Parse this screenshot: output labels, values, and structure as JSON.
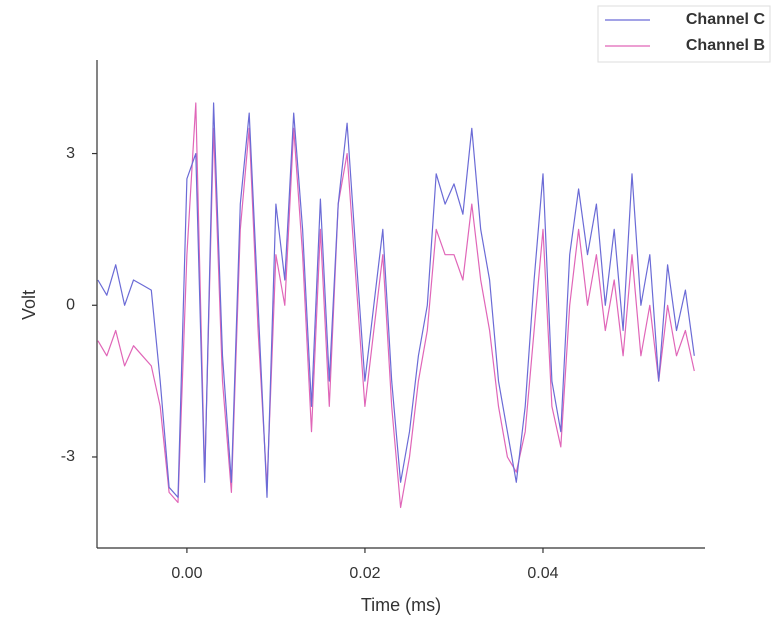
{
  "chart_data": {
    "type": "line",
    "x_label": "Time (ms)",
    "y_label": "Volt",
    "x": [
      -0.01,
      -0.009,
      -0.008,
      -0.007,
      -0.006,
      -0.005,
      -0.004,
      -0.003,
      -0.002,
      -0.001,
      0,
      0.001,
      0.002,
      0.003,
      0.004,
      0.005,
      0.006,
      0.007,
      0.008,
      0.009,
      0.01,
      0.011,
      0.012,
      0.013,
      0.014,
      0.015,
      0.016,
      0.017,
      0.018,
      0.019,
      0.02,
      0.021,
      0.022,
      0.023,
      0.024,
      0.025,
      0.026,
      0.027,
      0.028,
      0.029,
      0.03,
      0.031,
      0.032,
      0.033,
      0.034,
      0.035,
      0.036,
      0.037,
      0.038,
      0.039,
      0.04,
      0.041,
      0.042,
      0.043,
      0.044,
      0.045,
      0.046,
      0.047,
      0.048,
      0.049,
      0.05,
      0.051,
      0.052,
      0.053,
      0.054,
      0.055,
      0.056,
      0.057
    ],
    "series": [
      {
        "name": "Channel C",
        "color": "#6b6bd6",
        "values": [
          0.5,
          0.2,
          0.8,
          0.0,
          0.5,
          0.4,
          0.3,
          -1.5,
          -3.6,
          -3.8,
          2.5,
          3.0,
          -3.5,
          4.0,
          -1.0,
          -3.5,
          2.0,
          3.8,
          0.0,
          -3.8,
          2.0,
          0.5,
          3.8,
          1.5,
          -2.0,
          2.1,
          -1.5,
          2.0,
          3.6,
          1.0,
          -1.5,
          0.0,
          1.5,
          -1.5,
          -3.5,
          -2.5,
          -1.0,
          0.0,
          2.6,
          2.0,
          2.4,
          1.8,
          3.5,
          1.5,
          0.5,
          -1.5,
          -2.5,
          -3.5,
          -2.0,
          0.5,
          2.6,
          -1.5,
          -2.5,
          1.0,
          2.3,
          1.0,
          2.0,
          0.0,
          1.5,
          -0.5,
          2.6,
          0.0,
          1.0,
          -1.5,
          0.8,
          -0.5,
          0.3,
          -1.0
        ]
      },
      {
        "name": "Channel B",
        "color": "#e066b8",
        "values": [
          -0.7,
          -1.0,
          -0.5,
          -1.2,
          -0.8,
          -1.0,
          -1.2,
          -2.0,
          -3.7,
          -3.9,
          1.0,
          4.0,
          -3.4,
          3.5,
          -1.5,
          -3.7,
          1.5,
          3.5,
          -0.5,
          -3.6,
          1.0,
          0.0,
          3.5,
          1.0,
          -2.5,
          1.5,
          -2.0,
          2.0,
          3.0,
          0.5,
          -2.0,
          -0.5,
          1.0,
          -2.0,
          -4.0,
          -3.0,
          -1.5,
          -0.5,
          1.5,
          1.0,
          1.0,
          0.5,
          2.0,
          0.5,
          -0.5,
          -2.0,
          -3.0,
          -3.3,
          -2.5,
          -0.5,
          1.5,
          -2.0,
          -2.8,
          0.0,
          1.5,
          0.0,
          1.0,
          -0.5,
          0.5,
          -1.0,
          1.0,
          -1.0,
          0.0,
          -1.5,
          0.0,
          -1.0,
          -0.5,
          -1.3
        ]
      }
    ],
    "xlim": [
      -0.0101,
      0.0582
    ],
    "ylim": [
      -4.8,
      4.85
    ],
    "xticks": [
      {
        "value": 0,
        "label": "0.00"
      },
      0.02,
      0.04
    ],
    "yticks": [
      3,
      0,
      -3
    ],
    "legend": "top-right"
  }
}
